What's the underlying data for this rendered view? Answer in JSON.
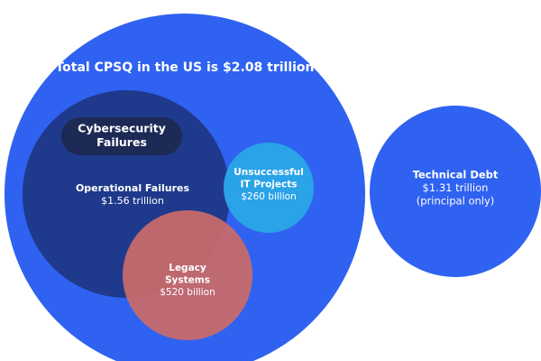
{
  "title": "Total CPSQ in the US is $2.08 trillion",
  "nodes": [
    {
      "id": "cybersecurity",
      "label": [
        "Cybersecurity",
        "Failures"
      ]
    },
    {
      "id": "operational",
      "label": [
        "Operational Failures"
      ],
      "value": "$1.56 trillion"
    },
    {
      "id": "it-projects",
      "label": [
        "Unsuccessful",
        "IT Projects"
      ],
      "value": "$260 billion"
    },
    {
      "id": "legacy",
      "label": [
        "Legacy",
        "Systems"
      ],
      "value": "$520 billion"
    },
    {
      "id": "technical-debt",
      "label": [
        "Technical Debt"
      ],
      "value": [
        "$1.31 trillion",
        "(principal only)"
      ]
    }
  ]
}
